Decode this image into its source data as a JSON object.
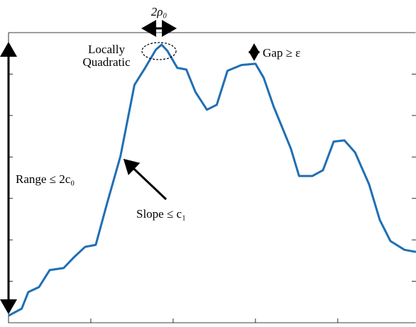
{
  "chart_data": {
    "type": "line",
    "annotations": {
      "width": "2ρ₀",
      "peak_line1": "Locally",
      "peak_line2": "Quadratic",
      "gap": "Gap ≥ ε",
      "range": "Range ≤ 2c₀",
      "slope": "Slope ≤ c₁"
    },
    "x": [
      0,
      0.16,
      0.24,
      0.37,
      0.5,
      0.67,
      0.8,
      0.93,
      1.06,
      1.19,
      1.36,
      1.53,
      1.66,
      1.79,
      1.86,
      1.93,
      2.05,
      2.16,
      2.27,
      2.41,
      2.53,
      2.66,
      2.83,
      3.0,
      3.1,
      3.22,
      3.43,
      3.53,
      3.69,
      3.82,
      3.95,
      4.08,
      4.21,
      4.38,
      4.51,
      4.64,
      4.81,
      4.95
    ],
    "series": [
      {
        "color": "#1f6fb4",
        "values": [
          0.17,
          0.34,
          0.74,
          0.86,
          1.27,
          1.32,
          1.59,
          1.83,
          1.88,
          2.83,
          4.02,
          5.74,
          6.15,
          6.59,
          6.71,
          6.56,
          6.15,
          6.11,
          5.57,
          5.14,
          5.26,
          6.08,
          6.22,
          6.25,
          5.91,
          5.22,
          4.2,
          3.54,
          3.54,
          3.68,
          4.37,
          4.4,
          4.11,
          3.34,
          2.48,
          1.97,
          1.76,
          1.71
        ]
      }
    ],
    "xlim": [
      0,
      4.95
    ],
    "xticks": [
      1,
      2,
      3,
      4
    ],
    "ylim": [
      0,
      7
    ],
    "yticks": [
      1,
      2,
      3,
      4,
      5,
      6
    ]
  }
}
